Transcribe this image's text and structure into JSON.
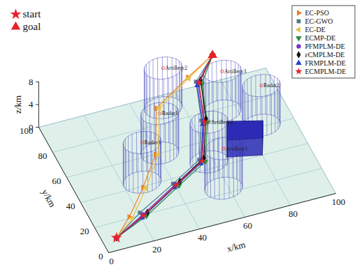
{
  "chart_data": {
    "type": "line3d",
    "xlabel": "x/km",
    "ylabel": "y/km",
    "zlabel": "z/km",
    "xlim": [
      0,
      100
    ],
    "ylim": [
      0,
      100
    ],
    "zlim": [
      0,
      8
    ],
    "xticks": [
      0,
      20,
      40,
      60,
      80,
      100
    ],
    "yticks": [
      0,
      20,
      40,
      60,
      80,
      100
    ],
    "zticks": [
      0,
      4,
      8
    ],
    "grid": true,
    "legend": "upper right",
    "start": {
      "name": "start",
      "x": 5,
      "y": 5,
      "z": 1,
      "color": "#e8202a",
      "marker": "star"
    },
    "goal": {
      "name": "goal",
      "x": 75,
      "y": 95,
      "z": 6,
      "color": "#e8202a",
      "marker": "triangle-up"
    },
    "threats": [
      {
        "name": "Radar1",
        "x": 41,
        "y": 60,
        "radius": 8,
        "height": 7
      },
      {
        "name": "Radar2",
        "x": 86,
        "y": 61,
        "radius": 8,
        "height": 7
      },
      {
        "name": "Radar3",
        "x": 28,
        "y": 43,
        "radius": 8,
        "height": 7
      },
      {
        "name": "Artillery1",
        "x": 58,
        "y": 24,
        "radius": 8,
        "height": 7
      },
      {
        "name": "Artillery2",
        "x": 52,
        "y": 91,
        "radius": 8,
        "height": 7
      },
      {
        "name": "Artillery3",
        "x": 74,
        "y": 78,
        "radius": 8,
        "height": 7
      },
      {
        "name": "Artillery4",
        "x": 58,
        "y": 45,
        "radius": 8,
        "height": 7
      }
    ],
    "no_fly_zone": {
      "vertices": [
        [
          66,
          45
        ],
        [
          80,
          40
        ],
        [
          84,
          52
        ],
        [
          70,
          58
        ]
      ],
      "height": 3,
      "color": "#2b2bb5"
    },
    "series": [
      {
        "name": "EC-PSO",
        "color": "#f07f2a",
        "marker": "triangle-right",
        "x": [
          5,
          14,
          25,
          36,
          45,
          62,
          75
        ],
        "y": [
          5,
          16,
          32,
          50,
          78,
          88,
          95
        ],
        "z": [
          1,
          1.3,
          1.8,
          2.5,
          3.5,
          5,
          6
        ]
      },
      {
        "name": "EC-GWO",
        "color": "#4a7a8c",
        "marker": "square",
        "x": [
          5,
          19,
          37,
          51,
          59,
          64,
          75
        ],
        "y": [
          5,
          17,
          28,
          36,
          59,
          83,
          95
        ],
        "z": [
          1,
          1.3,
          2.1,
          3.1,
          4.1,
          5.1,
          6
        ]
      },
      {
        "name": "EC-DE",
        "color": "#e8c547",
        "marker": "triangle-left",
        "x": [
          5,
          15,
          26,
          37,
          46,
          62,
          75
        ],
        "y": [
          5,
          15,
          31,
          49,
          77,
          87,
          95
        ],
        "z": [
          1,
          1.2,
          1.8,
          2.6,
          3.6,
          5,
          6
        ]
      },
      {
        "name": "ECMP-DE",
        "color": "#2c8a3c",
        "marker": "triangle-down",
        "x": [
          5,
          21,
          39,
          53,
          61,
          66,
          75
        ],
        "y": [
          5,
          14,
          26,
          34,
          57,
          81,
          95
        ],
        "z": [
          1,
          1.2,
          2,
          3,
          4,
          5,
          6
        ]
      },
      {
        "name": "PFMPLM-DE",
        "color": "#7a33c9",
        "marker": "circle",
        "x": [
          5,
          20,
          38,
          52,
          60,
          65,
          75
        ],
        "y": [
          5,
          16,
          28,
          36,
          59,
          83,
          95
        ],
        "z": [
          1,
          1.1,
          1.9,
          2.9,
          3.9,
          4.9,
          6
        ]
      },
      {
        "name": "εCMPLM-DE",
        "color": "#111111",
        "marker": "diamond",
        "x": [
          5,
          22,
          40,
          53,
          61,
          66,
          75
        ],
        "y": [
          5,
          16,
          28,
          36,
          59,
          83,
          95
        ],
        "z": [
          1,
          1.3,
          2.2,
          3.2,
          4.2,
          5.2,
          6
        ]
      },
      {
        "name": "FRMPLM-DE",
        "color": "#1f3fd6",
        "marker": "triangle-up",
        "x": [
          5,
          19,
          37,
          51,
          59,
          64,
          75
        ],
        "y": [
          5,
          14,
          26,
          34,
          57,
          81,
          95
        ],
        "z": [
          1,
          1.1,
          1.9,
          2.9,
          3.9,
          4.9,
          6
        ]
      },
      {
        "name": "ECMPLM-DE",
        "color": "#e8202a",
        "marker": "star",
        "x": [
          5,
          20,
          38,
          52,
          60,
          65,
          75
        ],
        "y": [
          5,
          15,
          27,
          35,
          58,
          82,
          95
        ],
        "z": [
          1,
          1.2,
          2,
          3,
          4,
          5,
          6
        ]
      }
    ]
  }
}
